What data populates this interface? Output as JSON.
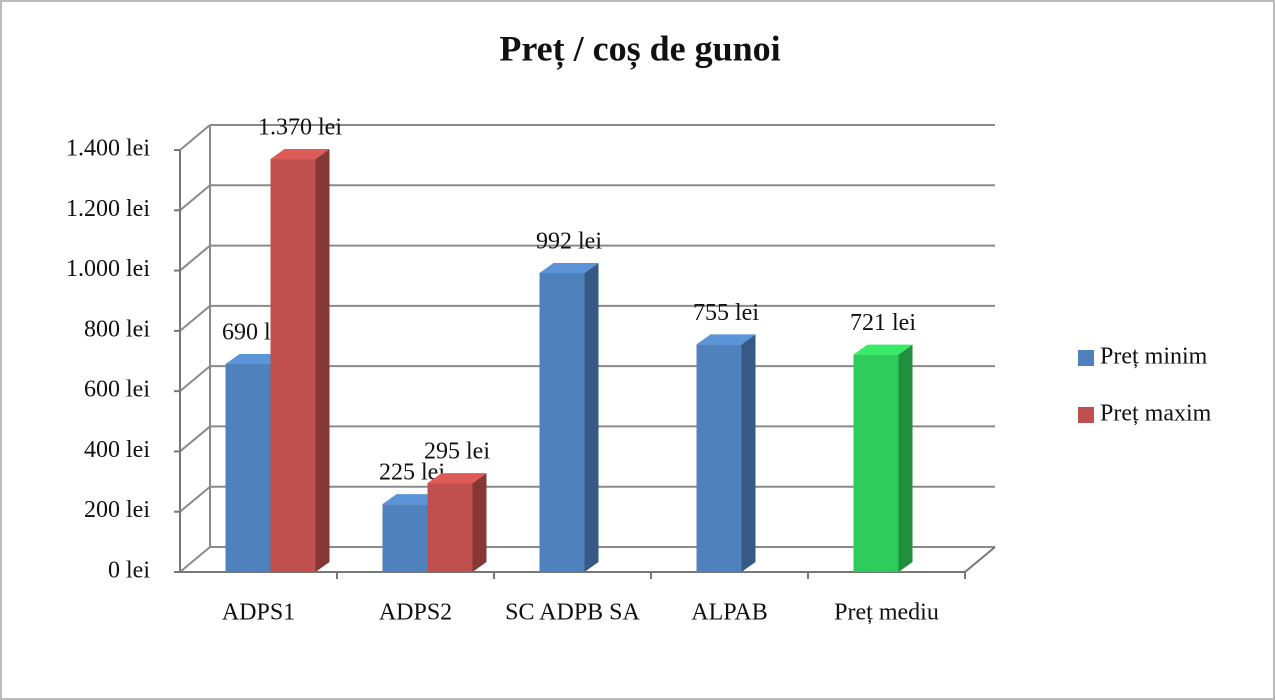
{
  "chart_data": {
    "type": "bar3d",
    "title": "Preț / coș de gunoi",
    "categories": [
      "ADPS1",
      "ADPS2",
      "SC ADPB SA",
      "ALPAB",
      "Preț mediu"
    ],
    "series": [
      {
        "name": "Preț minim",
        "color": "#4f81bd",
        "colors": [
          "#4f81bd",
          "#4f81bd",
          "#4f81bd",
          "#4f81bd",
          "#2ecc5a"
        ],
        "values": [
          690,
          225,
          992,
          755,
          721
        ],
        "value_labels": [
          "690 lei",
          "225 lei",
          "992 lei",
          "755 lei",
          "721 lei"
        ]
      },
      {
        "name": "Preț maxim",
        "color": "#c0504d",
        "colors": [
          "#c0504d",
          "#c0504d",
          "#c0504d",
          "#c0504d",
          "#c0504d"
        ],
        "values": [
          1370,
          295,
          null,
          null,
          null
        ],
        "value_labels": [
          "1.370 lei",
          "295 lei",
          null,
          null,
          null
        ]
      }
    ],
    "ylim": [
      0,
      1400
    ],
    "yticks": [
      {
        "value": 0,
        "label": "0 lei"
      },
      {
        "value": 200,
        "label": "200 lei"
      },
      {
        "value": 400,
        "label": "400 lei"
      },
      {
        "value": 600,
        "label": "600 lei"
      },
      {
        "value": 800,
        "label": "800 lei"
      },
      {
        "value": 1000,
        "label": "1.000 lei"
      },
      {
        "value": 1200,
        "label": "1.200 lei"
      },
      {
        "value": 1400,
        "label": "1.400 lei"
      }
    ],
    "grid": true,
    "legend": "right"
  }
}
